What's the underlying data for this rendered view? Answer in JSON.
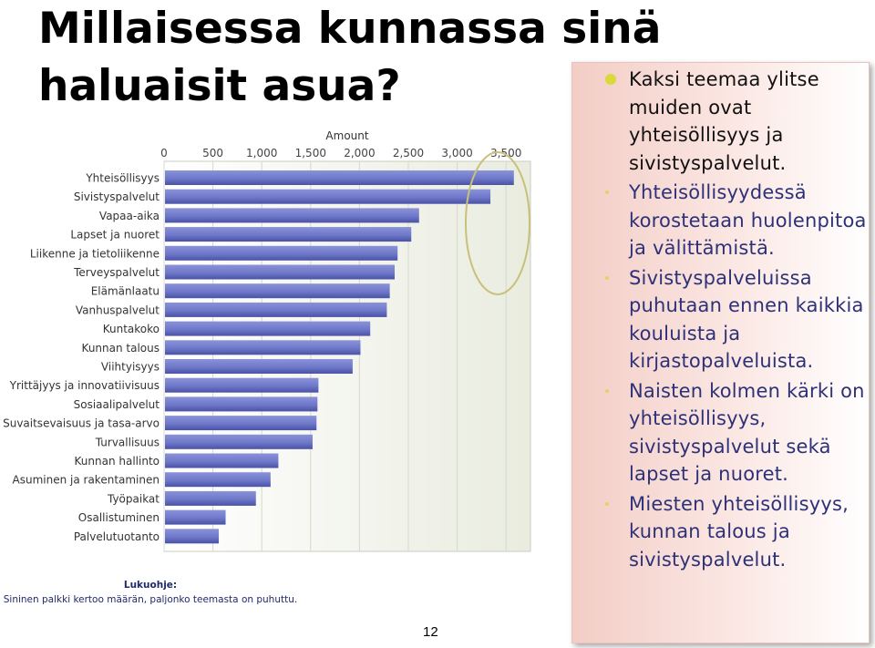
{
  "slide": {
    "title": "Millaisessa kunnassa sinä haluaisit asua?",
    "page_number": "12",
    "reading_guide_heading": "Lukuohje:",
    "reading_guide_text": "Sininen palkki kertoo määrän, paljonko teemasta on puhuttu."
  },
  "bullets": [
    {
      "text": "Kaksi teemaa ylitse muiden ovat yhteisöllisyys ja sivistyspalvelut.",
      "level": "main"
    },
    {
      "text": "Yhteisöllisyydessä korostetaan huolenpitoa ja välittämistä.",
      "level": "sub"
    },
    {
      "text": "Sivistyspalveluissa puhutaan ennen kaikkia kouluista ja kirjastopalveluista.",
      "level": "sub"
    },
    {
      "text": "Naisten kolmen kärki on yhteisöllisyys, sivistyspalvelut sekä lapset ja nuoret.",
      "level": "sub"
    },
    {
      "text": "Miesten yhteisöllisyys, kunnan talous ja sivistyspalvelut.",
      "level": "sub"
    }
  ],
  "colors": {
    "bar": "#6f78c9",
    "bar_shadow": "#4a52a6",
    "highlight_ellipse": "#c9c07a",
    "bullet_main": "#d9d93a"
  },
  "chart_data": {
    "type": "bar",
    "orientation": "horizontal",
    "xlabel": "Amount",
    "xlim": [
      0,
      3750
    ],
    "xticks": [
      "0",
      "500",
      "1,000",
      "1,500",
      "2,000",
      "2,500",
      "3,000",
      "3,500"
    ],
    "grid": true,
    "categories": [
      "Yhteisöllisyys",
      "Sivistyspalvelut",
      "Vapaa-aika",
      "Lapset ja nuoret",
      "Liikenne ja tietoliikenne",
      "Terveyspalvelut",
      "Elämänlaatu",
      "Vanhuspalvelut",
      "Kuntakoko",
      "Kunnan talous",
      "Viihtyisyys",
      "Yrittäjyys ja innovatiivisuus",
      "Sosiaalipalvelut",
      "Suvaitsevaisuus ja tasa-arvo",
      "Turvallisuus",
      "Kunnan hallinto",
      "Asuminen ja rakentaminen",
      "Työpaikat",
      "Osallistuminen",
      "Palvelutuotanto"
    ],
    "values": [
      3580,
      3340,
      2610,
      2530,
      2390,
      2360,
      2310,
      2280,
      2110,
      2010,
      1930,
      1580,
      1570,
      1560,
      1520,
      1170,
      1090,
      940,
      630,
      560
    ]
  }
}
